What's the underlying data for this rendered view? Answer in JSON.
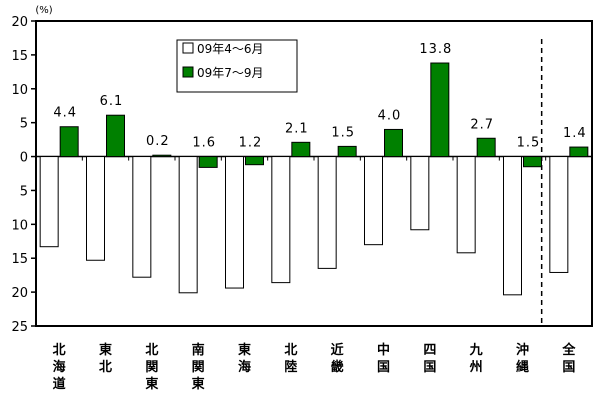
{
  "chart_data": {
    "type": "bar",
    "unit_label": "(%)",
    "categories": [
      "北\n海\n道",
      "東\n北",
      "北\n関\n東",
      "南\n関\n東",
      "東\n海",
      "北\n陸",
      "近\n畿",
      "中\n国",
      "四\n国",
      "九\n州",
      "沖\n縄",
      "全\n国"
    ],
    "series": [
      {
        "name": "09年4～6月",
        "color": "#ffffff",
        "values": [
          -13.3,
          -15.3,
          -17.8,
          -20.1,
          -19.4,
          -18.6,
          -16.5,
          -13.0,
          -10.8,
          -14.2,
          -20.4,
          -17.1
        ]
      },
      {
        "name": "09年7～9月",
        "color": "#008000",
        "values": [
          4.4,
          6.1,
          0.2,
          -1.6,
          -1.2,
          2.1,
          1.5,
          4.0,
          13.8,
          2.7,
          -1.5,
          1.4
        ],
        "labels": [
          "4.4",
          "6.1",
          "0.2",
          "1.6",
          "1.2",
          "2.1",
          "1.5",
          "4.0",
          "13.8",
          "2.7",
          "1.5",
          "1.4"
        ]
      }
    ],
    "y_ticks": [
      20,
      15,
      10,
      5,
      0,
      -5,
      -10,
      -15,
      -20,
      -25
    ],
    "y_tick_labels": [
      "20",
      "15",
      "10",
      "5",
      "0",
      "5",
      "10",
      "15",
      "20",
      "25"
    ],
    "ylim": [
      -25,
      20
    ],
    "separator_before_category": 11,
    "legend_position": "top-center",
    "grid": false
  }
}
